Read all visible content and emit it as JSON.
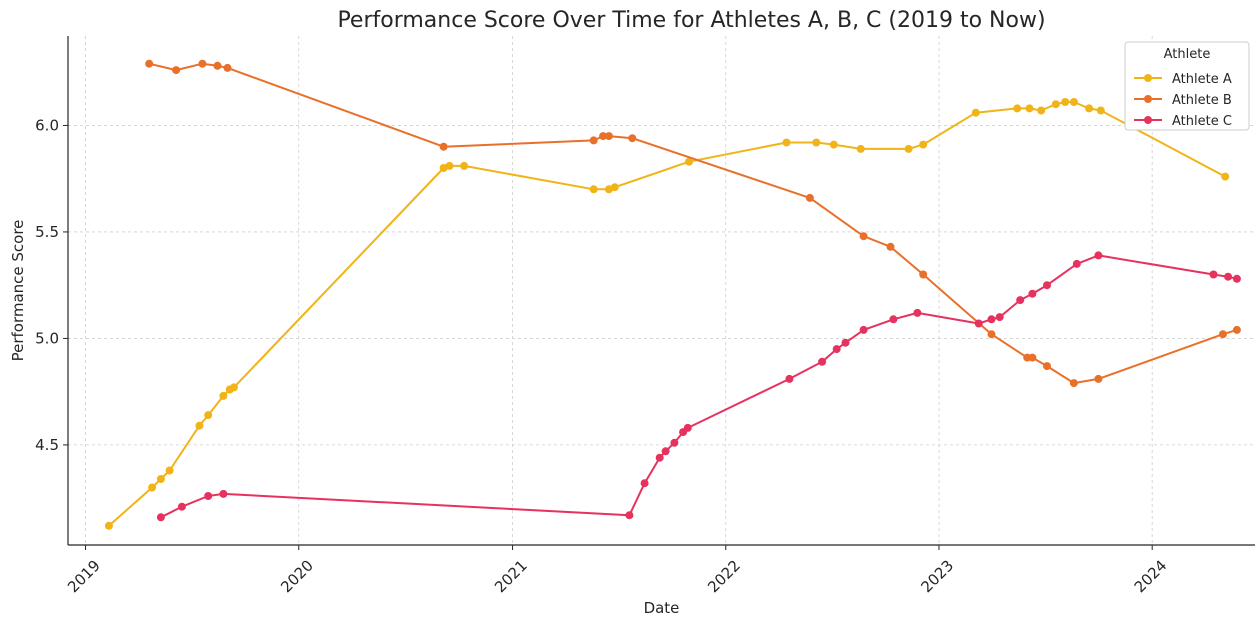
{
  "chart_data": {
    "type": "line",
    "title": "Performance Score Over Time for Athletes A, B, C (2019 to Now)",
    "xlabel": "Date",
    "ylabel": "Performance Score",
    "x_type": "date",
    "xlim": [
      "2018-12-02",
      "2024-06-25"
    ],
    "ylim": [
      4.03,
      6.42
    ],
    "x_ticks": [
      "2019-01-01",
      "2020-01-01",
      "2021-01-01",
      "2022-01-01",
      "2023-01-01",
      "2024-01-01"
    ],
    "x_tick_labels": [
      "2019",
      "2020",
      "2021",
      "2022",
      "2023",
      "2024"
    ],
    "y_ticks": [
      4.5,
      5.0,
      5.5,
      6.0
    ],
    "y_tick_labels": [
      "4.5",
      "5.0",
      "5.5",
      "6.0"
    ],
    "grid": true,
    "legend": {
      "title": "Athlete",
      "position": "top-right"
    },
    "series": [
      {
        "name": "Athlete A",
        "color": "#f0b418",
        "points": [
          {
            "x": "2019-02-10",
            "y": 4.12
          },
          {
            "x": "2019-04-25",
            "y": 4.3
          },
          {
            "x": "2019-05-10",
            "y": 4.34
          },
          {
            "x": "2019-05-25",
            "y": 4.38
          },
          {
            "x": "2019-07-15",
            "y": 4.59
          },
          {
            "x": "2019-07-30",
            "y": 4.64
          },
          {
            "x": "2019-08-25",
            "y": 4.73
          },
          {
            "x": "2019-09-05",
            "y": 4.76
          },
          {
            "x": "2019-09-12",
            "y": 4.77
          },
          {
            "x": "2020-09-05",
            "y": 5.8
          },
          {
            "x": "2020-09-15",
            "y": 5.81
          },
          {
            "x": "2020-10-10",
            "y": 5.81
          },
          {
            "x": "2021-05-20",
            "y": 5.7
          },
          {
            "x": "2021-06-15",
            "y": 5.7
          },
          {
            "x": "2021-06-25",
            "y": 5.71
          },
          {
            "x": "2021-10-30",
            "y": 5.83
          },
          {
            "x": "2022-04-15",
            "y": 5.92
          },
          {
            "x": "2022-06-05",
            "y": 5.92
          },
          {
            "x": "2022-07-05",
            "y": 5.91
          },
          {
            "x": "2022-08-20",
            "y": 5.89
          },
          {
            "x": "2022-11-10",
            "y": 5.89
          },
          {
            "x": "2022-12-05",
            "y": 5.91
          },
          {
            "x": "2023-03-05",
            "y": 6.06
          },
          {
            "x": "2023-05-15",
            "y": 6.08
          },
          {
            "x": "2023-06-05",
            "y": 6.08
          },
          {
            "x": "2023-06-25",
            "y": 6.07
          },
          {
            "x": "2023-07-20",
            "y": 6.1
          },
          {
            "x": "2023-08-05",
            "y": 6.11
          },
          {
            "x": "2023-08-20",
            "y": 6.11
          },
          {
            "x": "2023-09-15",
            "y": 6.08
          },
          {
            "x": "2023-10-05",
            "y": 6.07
          },
          {
            "x": "2024-05-05",
            "y": 5.76
          }
        ]
      },
      {
        "name": "Athlete B",
        "color": "#e8702a",
        "points": [
          {
            "x": "2019-04-20",
            "y": 6.29
          },
          {
            "x": "2019-06-05",
            "y": 6.26
          },
          {
            "x": "2019-07-20",
            "y": 6.29
          },
          {
            "x": "2019-08-15",
            "y": 6.28
          },
          {
            "x": "2019-09-01",
            "y": 6.27
          },
          {
            "x": "2020-09-05",
            "y": 5.9
          },
          {
            "x": "2021-05-20",
            "y": 5.93
          },
          {
            "x": "2021-06-05",
            "y": 5.95
          },
          {
            "x": "2021-06-15",
            "y": 5.95
          },
          {
            "x": "2021-07-25",
            "y": 5.94
          },
          {
            "x": "2022-05-25",
            "y": 5.66
          },
          {
            "x": "2022-08-25",
            "y": 5.48
          },
          {
            "x": "2022-10-10",
            "y": 5.43
          },
          {
            "x": "2022-12-05",
            "y": 5.3
          },
          {
            "x": "2023-04-01",
            "y": 5.02
          },
          {
            "x": "2023-06-01",
            "y": 4.91
          },
          {
            "x": "2023-06-10",
            "y": 4.91
          },
          {
            "x": "2023-07-05",
            "y": 4.87
          },
          {
            "x": "2023-08-20",
            "y": 4.79
          },
          {
            "x": "2023-10-01",
            "y": 4.81
          },
          {
            "x": "2024-05-01",
            "y": 5.02
          },
          {
            "x": "2024-05-25",
            "y": 5.04
          }
        ]
      },
      {
        "name": "Athlete C",
        "color": "#e6325f",
        "points": [
          {
            "x": "2019-05-10",
            "y": 4.16
          },
          {
            "x": "2019-06-15",
            "y": 4.21
          },
          {
            "x": "2019-07-30",
            "y": 4.26
          },
          {
            "x": "2019-08-25",
            "y": 4.27
          },
          {
            "x": "2021-07-20",
            "y": 4.17
          },
          {
            "x": "2021-08-15",
            "y": 4.32
          },
          {
            "x": "2021-09-10",
            "y": 4.44
          },
          {
            "x": "2021-09-20",
            "y": 4.47
          },
          {
            "x": "2021-10-05",
            "y": 4.51
          },
          {
            "x": "2021-10-20",
            "y": 4.56
          },
          {
            "x": "2021-10-28",
            "y": 4.58
          },
          {
            "x": "2022-04-20",
            "y": 4.81
          },
          {
            "x": "2022-06-15",
            "y": 4.89
          },
          {
            "x": "2022-07-10",
            "y": 4.95
          },
          {
            "x": "2022-07-25",
            "y": 4.98
          },
          {
            "x": "2022-08-25",
            "y": 5.04
          },
          {
            "x": "2022-10-15",
            "y": 5.09
          },
          {
            "x": "2022-11-25",
            "y": 5.12
          },
          {
            "x": "2023-03-10",
            "y": 5.07
          },
          {
            "x": "2023-04-01",
            "y": 5.09
          },
          {
            "x": "2023-04-15",
            "y": 5.1
          },
          {
            "x": "2023-05-20",
            "y": 5.18
          },
          {
            "x": "2023-06-10",
            "y": 5.21
          },
          {
            "x": "2023-07-05",
            "y": 5.25
          },
          {
            "x": "2023-08-25",
            "y": 5.35
          },
          {
            "x": "2023-10-01",
            "y": 5.39
          },
          {
            "x": "2024-04-15",
            "y": 5.3
          },
          {
            "x": "2024-05-10",
            "y": 5.29
          },
          {
            "x": "2024-05-25",
            "y": 5.28
          }
        ]
      }
    ]
  }
}
